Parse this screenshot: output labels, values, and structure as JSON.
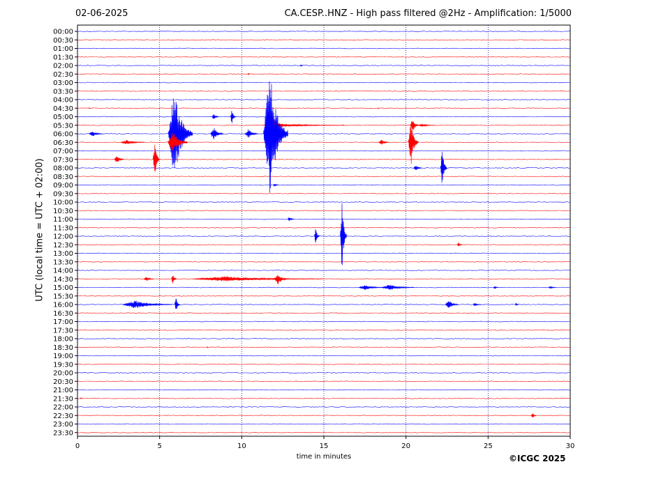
{
  "header": {
    "date": "02-06-2025",
    "title": "CA.CESP..HNZ - High pass filtered @2Hz - Amplification: 1/5000"
  },
  "footer": {
    "copyright": "©ICGC 2025"
  },
  "colors": {
    "red": "#ff0000",
    "blue": "#0000ff",
    "grid": "#0000aa"
  },
  "chart_data": {
    "type": "line",
    "subtype": "helicorder",
    "xlabel": "time in minutes",
    "ylabel": "UTC (local time = UTC + 02:00)",
    "xlim": [
      0,
      30
    ],
    "xticks": [
      0,
      5,
      10,
      15,
      20,
      25,
      30
    ],
    "grid": "vertical dotted at 5-minute ticks",
    "row_labels": [
      "00:00",
      "00:30",
      "01:00",
      "01:30",
      "02:00",
      "02:30",
      "03:00",
      "03:30",
      "04:00",
      "04:30",
      "05:00",
      "05:30",
      "06:00",
      "06:30",
      "07:00",
      "07:30",
      "08:00",
      "08:30",
      "09:00",
      "09:30",
      "10:00",
      "10:30",
      "11:00",
      "11:30",
      "12:00",
      "12:30",
      "13:00",
      "13:30",
      "14:00",
      "14:30",
      "15:00",
      "15:30",
      "16:00",
      "16:30",
      "17:00",
      "17:30",
      "18:00",
      "18:30",
      "19:00",
      "19:30",
      "20:00",
      "20:30",
      "21:00",
      "21:30",
      "22:00",
      "22:30",
      "23:00",
      "23:30"
    ],
    "row_colors": "alternating red / blue, starting with blue at 00:00",
    "events": [
      {
        "row": "02:00",
        "t": 13.6,
        "amp": 0.15,
        "dur": 0.15
      },
      {
        "row": "02:30",
        "t": 10.4,
        "amp": 0.15,
        "dur": 0.15
      },
      {
        "row": "04:30",
        "t": 0.7,
        "amp": 0.12,
        "dur": 0.1
      },
      {
        "row": "04:30",
        "t": 18.3,
        "amp": 0.12,
        "dur": 0.1
      },
      {
        "row": "05:00",
        "t": 8.3,
        "amp": 0.5,
        "dur": 0.4
      },
      {
        "row": "05:00",
        "t": 9.4,
        "amp": 1.0,
        "dur": 0.3
      },
      {
        "row": "05:30",
        "t": 11.7,
        "amp": 3.0,
        "dur": 1.0
      },
      {
        "row": "05:30",
        "t": 12.5,
        "amp": 0.2,
        "dur": 5.0
      },
      {
        "row": "05:30",
        "t": 20.4,
        "amp": 1.0,
        "dur": 0.5
      },
      {
        "row": "05:30",
        "t": 21.0,
        "amp": 0.2,
        "dur": 1.0
      },
      {
        "row": "06:00",
        "t": 0.9,
        "amp": 0.4,
        "dur": 0.8
      },
      {
        "row": "06:00",
        "t": 5.9,
        "amp": 5.5,
        "dur": 1.5
      },
      {
        "row": "06:00",
        "t": 8.3,
        "amp": 0.8,
        "dur": 0.8
      },
      {
        "row": "06:00",
        "t": 10.4,
        "amp": 0.6,
        "dur": 0.8
      },
      {
        "row": "06:00",
        "t": 11.7,
        "amp": 8.0,
        "dur": 1.5
      },
      {
        "row": "06:30",
        "t": 3.0,
        "amp": 0.3,
        "dur": 1.5
      },
      {
        "row": "06:30",
        "t": 5.8,
        "amp": 1.5,
        "dur": 1.2
      },
      {
        "row": "06:30",
        "t": 18.5,
        "amp": 0.4,
        "dur": 0.6
      },
      {
        "row": "06:30",
        "t": 20.3,
        "amp": 3.0,
        "dur": 0.6
      },
      {
        "row": "07:30",
        "t": 2.4,
        "amp": 0.5,
        "dur": 0.6
      },
      {
        "row": "07:30",
        "t": 4.7,
        "amp": 2.5,
        "dur": 0.4
      },
      {
        "row": "08:00",
        "t": 20.6,
        "amp": 0.4,
        "dur": 0.5
      },
      {
        "row": "08:00",
        "t": 22.2,
        "amp": 2.5,
        "dur": 0.4
      },
      {
        "row": "09:00",
        "t": 12.0,
        "amp": 0.2,
        "dur": 0.3
      },
      {
        "row": "11:00",
        "t": 12.9,
        "amp": 0.3,
        "dur": 0.4
      },
      {
        "row": "12:00",
        "t": 14.5,
        "amp": 1.1,
        "dur": 0.3
      },
      {
        "row": "12:00",
        "t": 16.1,
        "amp": 4.5,
        "dur": 0.4
      },
      {
        "row": "12:30",
        "t": 23.2,
        "amp": 0.3,
        "dur": 0.3
      },
      {
        "row": "14:30",
        "t": 4.2,
        "amp": 0.3,
        "dur": 0.6
      },
      {
        "row": "14:30",
        "t": 5.8,
        "amp": 0.7,
        "dur": 0.3
      },
      {
        "row": "14:30",
        "t": 9.0,
        "amp": 0.3,
        "dur": 8.0
      },
      {
        "row": "14:30",
        "t": 12.2,
        "amp": 0.7,
        "dur": 0.8
      },
      {
        "row": "15:00",
        "t": 17.5,
        "amp": 0.3,
        "dur": 1.5
      },
      {
        "row": "15:00",
        "t": 19.0,
        "amp": 0.35,
        "dur": 2.0
      },
      {
        "row": "15:00",
        "t": 25.4,
        "amp": 0.2,
        "dur": 0.3
      },
      {
        "row": "15:00",
        "t": 28.8,
        "amp": 0.2,
        "dur": 0.4
      },
      {
        "row": "16:00",
        "t": 3.5,
        "amp": 0.5,
        "dur": 3.0
      },
      {
        "row": "16:00",
        "t": 6.0,
        "amp": 1.2,
        "dur": 0.3
      },
      {
        "row": "16:00",
        "t": 22.6,
        "amp": 0.6,
        "dur": 0.8
      },
      {
        "row": "16:00",
        "t": 24.2,
        "amp": 0.2,
        "dur": 0.5
      },
      {
        "row": "16:00",
        "t": 26.7,
        "amp": 0.3,
        "dur": 0.2
      },
      {
        "row": "18:30",
        "t": 7.9,
        "amp": 0.15,
        "dur": 0.1
      },
      {
        "row": "21:30",
        "t": 0.2,
        "amp": 0.15,
        "dur": 0.1
      },
      {
        "row": "22:30",
        "t": 27.7,
        "amp": 0.4,
        "dur": 0.3
      }
    ]
  }
}
